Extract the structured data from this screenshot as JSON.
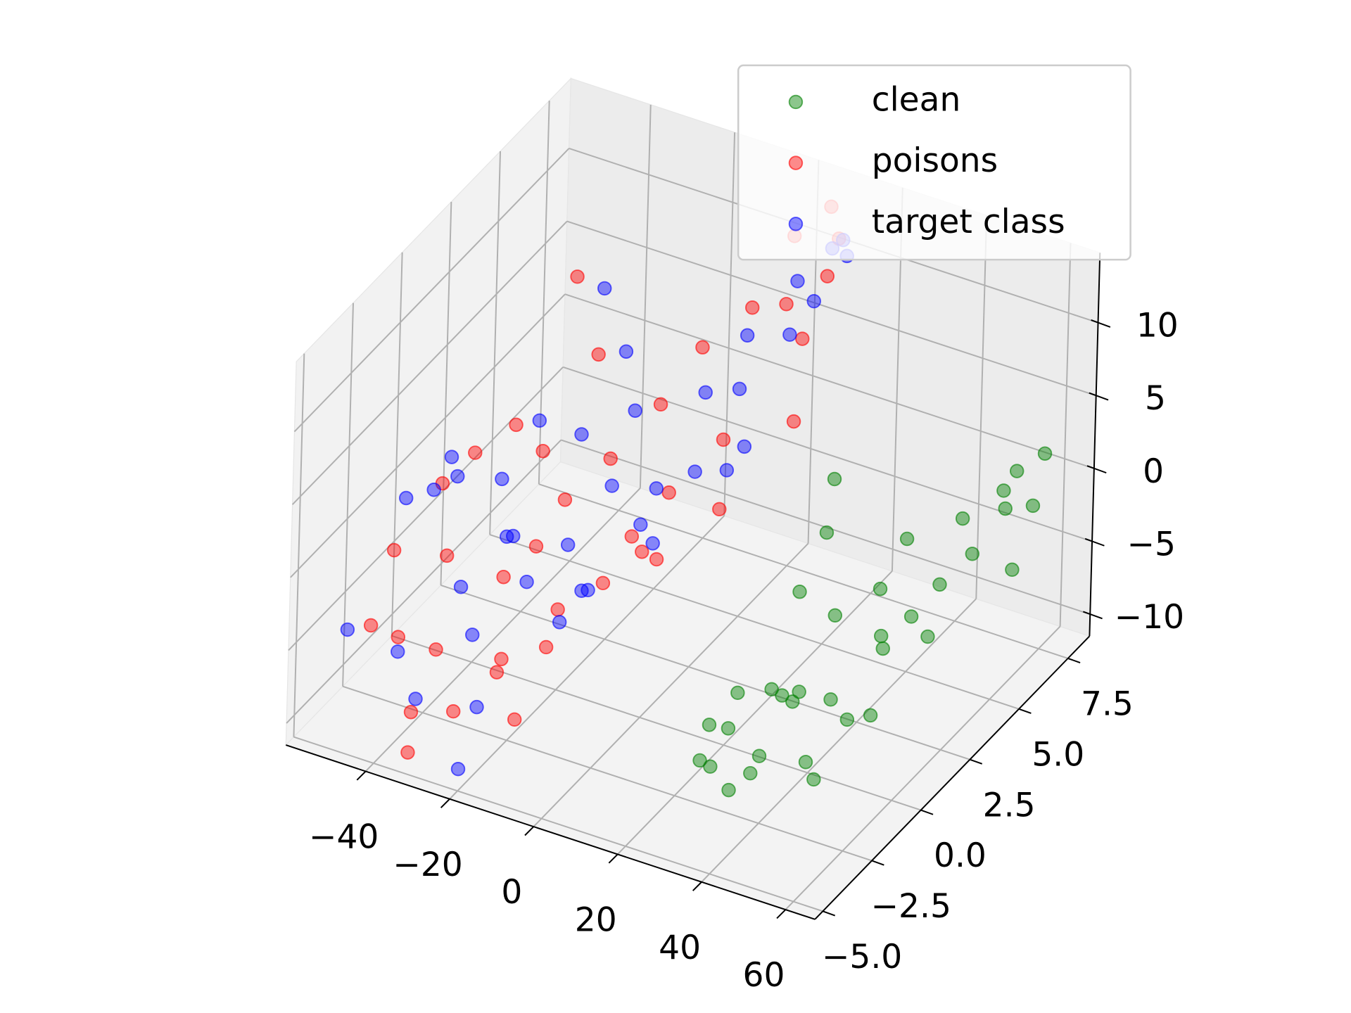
{
  "chart_data": {
    "type": "scatter3d",
    "legend": "upper right",
    "grid": true,
    "xlim": [
      -59,
      67
    ],
    "ylim": [
      -5.4,
      8.6
    ],
    "zlim": [
      -11.5,
      14.8
    ],
    "xticks": [
      {
        "value": -40,
        "label": "−40"
      },
      {
        "value": -20,
        "label": "−20"
      },
      0,
      20,
      40,
      60
    ],
    "yticks": [
      {
        "value": -5,
        "label": "−5.0"
      },
      {
        "value": -2.5,
        "label": "−2.5"
      },
      {
        "value": 0,
        "label": "0.0"
      },
      2.5,
      {
        "value": 5,
        "label": "5.0"
      },
      7.5
    ],
    "zticks": [
      {
        "value": -10,
        "label": "−10"
      },
      {
        "value": -5,
        "label": "−5"
      },
      0,
      5,
      10
    ],
    "series": [
      {
        "name": "clean",
        "color": "green",
        "x": [
          30,
          32,
          35,
          38,
          36,
          40,
          42,
          33,
          37,
          45,
          48,
          50,
          44,
          41,
          39,
          52,
          55,
          58,
          54,
          50,
          47,
          56,
          60,
          57,
          53,
          49,
          46,
          43,
          28,
          25,
          22,
          35,
          31,
          58,
          60,
          62
        ],
        "y": [
          -3,
          -2,
          -4,
          -1,
          0,
          -2,
          -3,
          1,
          -5,
          0,
          2,
          3,
          -1,
          1,
          -4,
          4,
          5,
          6,
          3,
          1,
          2,
          7,
          6,
          4,
          2,
          0,
          -1,
          3,
          2,
          4,
          5,
          -3,
          -1,
          8,
          7,
          5
        ],
        "z": [
          -5,
          -4,
          -6,
          -5,
          -7,
          -3,
          -6,
          -8,
          -4,
          -6,
          -5,
          -4,
          -9,
          -2,
          -3,
          -3,
          -2,
          0,
          -5,
          -8,
          -1,
          1,
          -4,
          2,
          3,
          -7,
          -10,
          -6,
          -3,
          -2,
          0,
          -9,
          -11,
          1,
          -1,
          3
        ]
      },
      {
        "name": "poisons",
        "color": "red",
        "x": [
          -50,
          -48,
          -45,
          -42,
          -40,
          -38,
          -35,
          -33,
          -30,
          -28,
          -25,
          -22,
          -20,
          -18,
          -15,
          -12,
          -10,
          -8,
          -5,
          -3,
          0,
          2,
          5,
          8,
          10,
          12,
          -46,
          -44,
          -36,
          -32,
          -26,
          -24,
          -16,
          -14,
          -6,
          4,
          6,
          9,
          -40,
          -30
        ],
        "y": [
          -2,
          0,
          1,
          -1,
          2,
          3,
          -3,
          0,
          1,
          2,
          -2,
          3,
          0,
          -1,
          4,
          2,
          5,
          3,
          1,
          6,
          4,
          7,
          6,
          8,
          7,
          5,
          -4,
          -3,
          -4,
          -5,
          -4,
          -2,
          -3,
          1,
          2,
          3,
          8,
          6,
          5,
          4
        ],
        "z": [
          -2,
          0,
          1,
          -3,
          2,
          -1,
          -6,
          -5,
          -4,
          -2,
          -8,
          0,
          -6,
          -7,
          3,
          -3,
          6,
          -1,
          -2,
          8,
          2,
          12,
          9,
          11,
          10,
          3,
          -4,
          -6,
          -9,
          -10,
          -8,
          -7,
          -9,
          -5,
          -4,
          -1,
          13,
          7,
          8,
          5
        ]
      },
      {
        "name": "target class",
        "color": "blue",
        "x": [
          -52,
          -49,
          -46,
          -43,
          -41,
          -39,
          -37,
          -34,
          -31,
          -29,
          -27,
          -23,
          -21,
          -19,
          -17,
          -13,
          -11,
          -9,
          -7,
          -4,
          -1,
          1,
          3,
          6,
          9,
          11,
          -47,
          -44,
          -35,
          -31,
          -25,
          -20,
          -15,
          -10,
          -2,
          5,
          7,
          10,
          -38,
          -28
        ],
        "y": [
          -1,
          1,
          0,
          2,
          -2,
          3,
          1,
          -2,
          0,
          3,
          2,
          -1,
          4,
          1,
          2,
          0,
          3,
          5,
          2,
          6,
          5,
          4,
          7,
          6,
          8,
          7,
          -5,
          -3,
          -4,
          -2,
          -3,
          -5,
          -1,
          2,
          3,
          4,
          7,
          8,
          6,
          5
        ],
        "z": [
          0,
          -1,
          2,
          -2,
          3,
          1,
          -4,
          -3,
          -2,
          1,
          -5,
          -3,
          2,
          -6,
          0,
          -4,
          -1,
          3,
          -3,
          6,
          4,
          0,
          9,
          7,
          11,
          12,
          -3,
          -7,
          -8,
          -6,
          -9,
          -10,
          -5,
          -2,
          1,
          2,
          8,
          10,
          6,
          4
        ]
      }
    ]
  }
}
